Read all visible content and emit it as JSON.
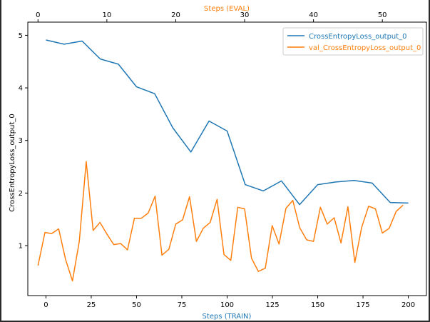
{
  "chart_data": {
    "type": "line",
    "ylabel": "CrossEntropyLoss_output_0",
    "xlabel_bottom": "Steps (TRAIN)",
    "xlabel_top": "Steps (EVAL)",
    "xlim_bottom": [
      -10,
      210
    ],
    "xlim_top": [
      -1.48,
      56.4
    ],
    "ylim": [
      0.05,
      5.25
    ],
    "x_ticks_bottom": [
      0,
      25,
      50,
      75,
      100,
      125,
      150,
      175,
      200
    ],
    "x_ticks_top": [
      0,
      10,
      20,
      30,
      40,
      50
    ],
    "y_ticks": [
      1,
      2,
      3,
      4,
      5
    ],
    "grid": false,
    "legend_position": "top-right",
    "colors": {
      "train": "#1f77b4",
      "val": "#ff7f0e",
      "xlabel_top": "#ff7f0e",
      "xlabel_bottom": "#1f77b4"
    },
    "series": [
      {
        "name": "CrossEntropyLoss_output_0",
        "color": "#1f77b4",
        "axis": "bottom",
        "x": [
          0,
          10,
          20,
          30,
          40,
          50,
          60,
          70,
          80,
          90,
          100,
          110,
          120,
          130,
          140,
          150,
          160,
          170,
          180,
          190,
          200
        ],
        "y": [
          4.91,
          4.83,
          4.89,
          4.55,
          4.45,
          4.02,
          3.89,
          3.24,
          2.78,
          3.37,
          3.18,
          2.16,
          2.04,
          2.23,
          1.78,
          2.16,
          2.21,
          2.24,
          2.19,
          1.82,
          1.81
        ]
      },
      {
        "name": "val_CrossEntropyLoss_output_0",
        "color": "#ff7f0e",
        "axis": "top",
        "x": [
          0,
          1,
          2,
          3,
          4,
          5,
          6,
          7,
          8,
          9,
          10,
          11,
          12,
          13,
          14,
          15,
          16,
          17,
          18,
          19,
          20,
          21,
          22,
          23,
          24,
          25,
          26,
          27,
          28,
          29,
          30,
          31,
          32,
          33,
          34,
          35,
          36,
          37,
          38,
          39,
          40,
          41,
          42,
          43,
          44,
          45,
          46,
          47,
          48,
          49,
          50,
          51,
          52,
          53
        ],
        "y": [
          0.62,
          1.25,
          1.23,
          1.32,
          0.74,
          0.33,
          1.08,
          2.6,
          1.29,
          1.44,
          1.22,
          1.02,
          1.04,
          0.92,
          1.52,
          1.52,
          1.62,
          1.94,
          0.82,
          0.93,
          1.41,
          1.49,
          1.93,
          1.08,
          1.33,
          1.44,
          1.88,
          0.83,
          0.72,
          1.73,
          1.7,
          0.76,
          0.51,
          0.57,
          1.38,
          1.03,
          1.71,
          1.86,
          1.34,
          1.11,
          1.08,
          1.73,
          1.41,
          1.53,
          1.05,
          1.74,
          0.68,
          1.35,
          1.75,
          1.7,
          1.24,
          1.33,
          1.65,
          1.77
        ]
      }
    ]
  }
}
